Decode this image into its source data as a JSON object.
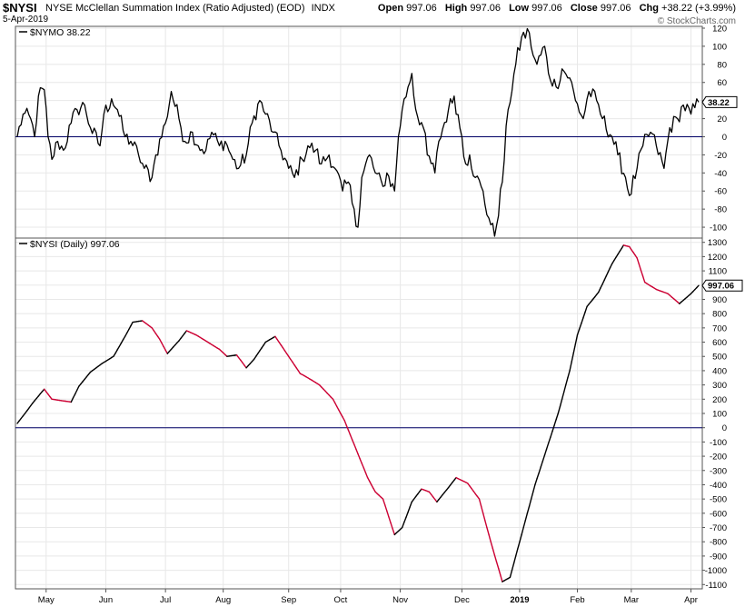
{
  "header": {
    "symbol": "$NYSI",
    "name": "NYSE McClellan Summation Index (Ratio Adjusted) (EOD)",
    "exchange": "INDX",
    "date": "5-Apr-2019",
    "open_label": "Open",
    "open": "997.06",
    "high_label": "High",
    "high": "997.06",
    "low_label": "Low",
    "low": "997.06",
    "close_label": "Close",
    "close": "997.06",
    "chg_label": "Chg",
    "chg": "+38.22 (+3.99%)",
    "chg_color": "#000000",
    "source": "© StockCharts.com"
  },
  "colors": {
    "up_line": "#000000",
    "down_line": "#cc0033",
    "zero_line": "#000066",
    "background": "#ffffff",
    "grid": "#e8e8e8"
  },
  "chart_data": [
    {
      "type": "line",
      "title": "$NYMO 38.22",
      "series": [
        {
          "name": "$NYMO",
          "x_start": "2018-04-16",
          "x_end": "2019-04-05",
          "keypoints": [
            [
              "2018-04-16",
              0
            ],
            [
              "2018-04-19",
              25
            ],
            [
              "2018-04-23",
              20
            ],
            [
              "2018-04-25",
              0
            ],
            [
              "2018-04-27",
              45
            ],
            [
              "2018-04-30",
              52
            ],
            [
              "2018-05-02",
              0
            ],
            [
              "2018-05-04",
              -25
            ],
            [
              "2018-05-07",
              -5
            ],
            [
              "2018-05-10",
              -15
            ],
            [
              "2018-05-14",
              15
            ],
            [
              "2018-05-17",
              30
            ],
            [
              "2018-05-21",
              35
            ],
            [
              "2018-05-24",
              10
            ],
            [
              "2018-05-29",
              -10
            ],
            [
              "2018-05-31",
              25
            ],
            [
              "2018-06-04",
              42
            ],
            [
              "2018-06-07",
              30
            ],
            [
              "2018-06-11",
              0
            ],
            [
              "2018-06-14",
              -5
            ],
            [
              "2018-06-18",
              -20
            ],
            [
              "2018-06-21",
              -35
            ],
            [
              "2018-06-25",
              -45
            ],
            [
              "2018-06-27",
              -20
            ],
            [
              "2018-07-02",
              15
            ],
            [
              "2018-07-05",
              50
            ],
            [
              "2018-07-09",
              20
            ],
            [
              "2018-07-12",
              -5
            ],
            [
              "2018-07-16",
              5
            ],
            [
              "2018-07-19",
              -10
            ],
            [
              "2018-07-23",
              -15
            ],
            [
              "2018-07-26",
              5
            ],
            [
              "2018-07-30",
              -10
            ],
            [
              "2018-08-02",
              -5
            ],
            [
              "2018-08-06",
              -25
            ],
            [
              "2018-08-09",
              -35
            ],
            [
              "2018-08-13",
              -20
            ],
            [
              "2018-08-16",
              15
            ],
            [
              "2018-08-20",
              40
            ],
            [
              "2018-08-23",
              25
            ],
            [
              "2018-08-27",
              5
            ],
            [
              "2018-08-30",
              -10
            ],
            [
              "2018-09-04",
              -35
            ],
            [
              "2018-09-07",
              -45
            ],
            [
              "2018-09-11",
              -25
            ],
            [
              "2018-09-14",
              -10
            ],
            [
              "2018-09-18",
              -15
            ],
            [
              "2018-09-21",
              -30
            ],
            [
              "2018-09-25",
              -20
            ],
            [
              "2018-09-28",
              -35
            ],
            [
              "2018-10-02",
              -60
            ],
            [
              "2018-10-05",
              -50
            ],
            [
              "2018-10-08",
              -80
            ],
            [
              "2018-10-10",
              -100
            ],
            [
              "2018-10-12",
              -45
            ],
            [
              "2018-10-16",
              -20
            ],
            [
              "2018-10-19",
              -40
            ],
            [
              "2018-10-23",
              -55
            ],
            [
              "2018-10-25",
              -40
            ],
            [
              "2018-10-29",
              -60
            ],
            [
              "2018-10-31",
              0
            ],
            [
              "2018-11-02",
              30
            ],
            [
              "2018-11-05",
              55
            ],
            [
              "2018-11-07",
              70
            ],
            [
              "2018-11-09",
              30
            ],
            [
              "2018-11-13",
              10
            ],
            [
              "2018-11-15",
              -20
            ],
            [
              "2018-11-19",
              -40
            ],
            [
              "2018-11-21",
              -5
            ],
            [
              "2018-11-26",
              30
            ],
            [
              "2018-11-29",
              45
            ],
            [
              "2018-12-03",
              0
            ],
            [
              "2018-12-05",
              -30
            ],
            [
              "2018-12-07",
              -20
            ],
            [
              "2018-12-10",
              -45
            ],
            [
              "2018-12-13",
              -55
            ],
            [
              "2018-12-17",
              -90
            ],
            [
              "2018-12-20",
              -110
            ],
            [
              "2018-12-24",
              -50
            ],
            [
              "2018-12-27",
              30
            ],
            [
              "2018-12-31",
              80
            ],
            [
              "2019-01-03",
              110
            ],
            [
              "2019-01-07",
              115
            ],
            [
              "2019-01-09",
              90
            ],
            [
              "2019-01-11",
              80
            ],
            [
              "2019-01-15",
              100
            ],
            [
              "2019-01-17",
              70
            ],
            [
              "2019-01-21",
              55
            ],
            [
              "2019-01-24",
              75
            ],
            [
              "2019-01-28",
              65
            ],
            [
              "2019-01-31",
              40
            ],
            [
              "2019-02-04",
              20
            ],
            [
              "2019-02-07",
              50
            ],
            [
              "2019-02-11",
              40
            ],
            [
              "2019-02-14",
              20
            ],
            [
              "2019-02-19",
              0
            ],
            [
              "2019-02-22",
              -20
            ],
            [
              "2019-02-26",
              -45
            ],
            [
              "2019-02-28",
              -65
            ],
            [
              "2019-03-04",
              -35
            ],
            [
              "2019-03-07",
              -10
            ],
            [
              "2019-03-11",
              5
            ],
            [
              "2019-03-14",
              -10
            ],
            [
              "2019-03-18",
              -35
            ],
            [
              "2019-03-21",
              10
            ],
            [
              "2019-03-25",
              20
            ],
            [
              "2019-03-28",
              35
            ],
            [
              "2019-04-01",
              25
            ],
            [
              "2019-04-05",
              38.22
            ]
          ]
        }
      ],
      "last_value_label": "38.22",
      "ylim": [
        -112,
        122
      ],
      "yticks": [
        "120",
        "100",
        "80",
        "60",
        "40",
        "20",
        "0",
        "-20",
        "-40",
        "-60",
        "-80",
        "-100"
      ],
      "ytick_values": [
        120,
        100,
        80,
        60,
        40,
        20,
        0,
        -20,
        -40,
        -60,
        -80,
        -100
      ],
      "zero_line": 0,
      "grid": true
    },
    {
      "type": "line",
      "title": "$NYSI (Daily) 997.06",
      "series": [
        {
          "name": "$NYSI",
          "x_start": "2018-04-16",
          "x_end": "2019-04-05",
          "coloring": "red when falling, black when rising",
          "keypoints": [
            [
              "2018-04-16",
              30
            ],
            [
              "2018-04-20",
              100
            ],
            [
              "2018-04-25",
              190
            ],
            [
              "2018-04-30",
              270
            ],
            [
              "2018-05-04",
              200
            ],
            [
              "2018-05-09",
              190
            ],
            [
              "2018-05-14",
              180
            ],
            [
              "2018-05-18",
              290
            ],
            [
              "2018-05-24",
              390
            ],
            [
              "2018-05-30",
              450
            ],
            [
              "2018-06-05",
              500
            ],
            [
              "2018-06-11",
              640
            ],
            [
              "2018-06-15",
              740
            ],
            [
              "2018-06-20",
              750
            ],
            [
              "2018-06-25",
              700
            ],
            [
              "2018-06-29",
              620
            ],
            [
              "2018-07-03",
              520
            ],
            [
              "2018-07-09",
              610
            ],
            [
              "2018-07-13",
              680
            ],
            [
              "2018-07-18",
              650
            ],
            [
              "2018-07-24",
              600
            ],
            [
              "2018-07-30",
              550
            ],
            [
              "2018-08-03",
              500
            ],
            [
              "2018-08-08",
              510
            ],
            [
              "2018-08-13",
              420
            ],
            [
              "2018-08-17",
              480
            ],
            [
              "2018-08-23",
              600
            ],
            [
              "2018-08-28",
              640
            ],
            [
              "2018-09-04",
              500
            ],
            [
              "2018-09-10",
              380
            ],
            [
              "2018-09-14",
              350
            ],
            [
              "2018-09-20",
              300
            ],
            [
              "2018-09-27",
              200
            ],
            [
              "2018-10-03",
              50
            ],
            [
              "2018-10-09",
              -150
            ],
            [
              "2018-10-15",
              -350
            ],
            [
              "2018-10-19",
              -450
            ],
            [
              "2018-10-23",
              -500
            ],
            [
              "2018-10-29",
              -750
            ],
            [
              "2018-11-02",
              -700
            ],
            [
              "2018-11-07",
              -520
            ],
            [
              "2018-11-12",
              -430
            ],
            [
              "2018-11-16",
              -450
            ],
            [
              "2018-11-20",
              -520
            ],
            [
              "2018-11-26",
              -420
            ],
            [
              "2018-11-30",
              -350
            ],
            [
              "2018-12-06",
              -390
            ],
            [
              "2018-12-12",
              -500
            ],
            [
              "2018-12-18",
              -800
            ],
            [
              "2018-12-24",
              -1080
            ],
            [
              "2018-12-28",
              -1050
            ],
            [
              "2019-01-04",
              -700
            ],
            [
              "2019-01-10",
              -400
            ],
            [
              "2019-01-16",
              -150
            ],
            [
              "2019-01-22",
              100
            ],
            [
              "2019-01-28",
              400
            ],
            [
              "2019-02-01",
              650
            ],
            [
              "2019-02-06",
              850
            ],
            [
              "2019-02-12",
              950
            ],
            [
              "2019-02-19",
              1150
            ],
            [
              "2019-02-25",
              1280
            ],
            [
              "2019-02-28",
              1270
            ],
            [
              "2019-03-04",
              1190
            ],
            [
              "2019-03-08",
              1020
            ],
            [
              "2019-03-14",
              970
            ],
            [
              "2019-03-20",
              940
            ],
            [
              "2019-03-26",
              870
            ],
            [
              "2019-04-01",
              940
            ],
            [
              "2019-04-05",
              997.06
            ]
          ]
        }
      ],
      "last_value_label": "997.06",
      "ylim": [
        -1130,
        1330
      ],
      "yticks": [
        "1300",
        "1200",
        "1100",
        "1000",
        "900",
        "800",
        "700",
        "600",
        "500",
        "400",
        "300",
        "200",
        "100",
        "0",
        "-100",
        "-200",
        "-300",
        "-400",
        "-500",
        "-600",
        "-700",
        "-800",
        "-900",
        "-1000",
        "-1100"
      ],
      "ytick_values": [
        1300,
        1200,
        1100,
        1000,
        900,
        800,
        700,
        600,
        500,
        400,
        300,
        200,
        100,
        0,
        -100,
        -200,
        -300,
        -400,
        -500,
        -600,
        -700,
        -800,
        -900,
        -1000,
        -1100
      ],
      "zero_line": 0,
      "grid": true
    }
  ],
  "x_axis": {
    "labels": [
      {
        "text": "May",
        "date": "2018-05-01",
        "bold": false
      },
      {
        "text": "Jun",
        "date": "2018-06-01",
        "bold": false
      },
      {
        "text": "Jul",
        "date": "2018-07-02",
        "bold": false
      },
      {
        "text": "Aug",
        "date": "2018-08-01",
        "bold": false
      },
      {
        "text": "Sep",
        "date": "2018-09-04",
        "bold": false
      },
      {
        "text": "Oct",
        "date": "2018-10-01",
        "bold": false
      },
      {
        "text": "Nov",
        "date": "2018-11-01",
        "bold": false
      },
      {
        "text": "Dec",
        "date": "2018-12-03",
        "bold": false
      },
      {
        "text": "2019",
        "date": "2019-01-02",
        "bold": true
      },
      {
        "text": "Feb",
        "date": "2019-02-01",
        "bold": false
      },
      {
        "text": "Mar",
        "date": "2019-03-01",
        "bold": false
      },
      {
        "text": "Apr",
        "date": "2019-04-01",
        "bold": false
      }
    ]
  }
}
